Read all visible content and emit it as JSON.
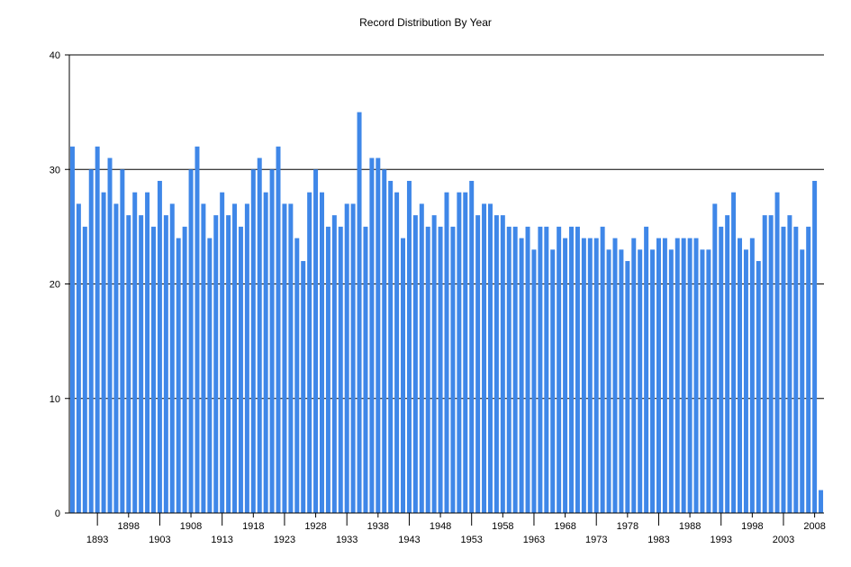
{
  "chart_data": {
    "type": "bar",
    "title": "Record Distribution By Year",
    "xlabel": "",
    "ylabel": "",
    "ylim": [
      0,
      40
    ],
    "y_ticks": [
      0,
      10,
      20,
      30,
      40
    ],
    "grid": "horizontal",
    "bar_color": "#3f87e8",
    "x_tick_labels": [
      1893,
      1898,
      1903,
      1908,
      1913,
      1918,
      1923,
      1928,
      1933,
      1938,
      1943,
      1948,
      1953,
      1958,
      1963,
      1968,
      1973,
      1978,
      1983,
      1988,
      1993,
      1998,
      2003,
      2008
    ],
    "categories": [
      1889,
      1890,
      1891,
      1892,
      1893,
      1894,
      1895,
      1896,
      1897,
      1898,
      1899,
      1900,
      1901,
      1902,
      1903,
      1904,
      1905,
      1906,
      1907,
      1908,
      1909,
      1910,
      1911,
      1912,
      1913,
      1914,
      1915,
      1916,
      1917,
      1918,
      1919,
      1920,
      1921,
      1922,
      1923,
      1924,
      1925,
      1926,
      1927,
      1928,
      1929,
      1930,
      1931,
      1932,
      1933,
      1934,
      1935,
      1936,
      1937,
      1938,
      1939,
      1940,
      1941,
      1942,
      1943,
      1944,
      1945,
      1946,
      1947,
      1948,
      1949,
      1950,
      1951,
      1952,
      1953,
      1954,
      1955,
      1956,
      1957,
      1958,
      1959,
      1960,
      1961,
      1962,
      1963,
      1964,
      1965,
      1966,
      1967,
      1968,
      1969,
      1970,
      1971,
      1972,
      1973,
      1974,
      1975,
      1976,
      1977,
      1978,
      1979,
      1980,
      1981,
      1982,
      1983,
      1984,
      1985,
      1986,
      1987,
      1988,
      1989,
      1990,
      1991,
      1992,
      1993,
      1994,
      1995,
      1996,
      1997,
      1998,
      1999,
      2000,
      2001,
      2002,
      2003,
      2004,
      2005,
      2006,
      2007,
      2008,
      2009
    ],
    "values": [
      32,
      27,
      25,
      30,
      32,
      28,
      31,
      27,
      30,
      26,
      28,
      26,
      28,
      25,
      29,
      26,
      27,
      24,
      25,
      30,
      32,
      27,
      24,
      26,
      28,
      26,
      27,
      25,
      27,
      30,
      31,
      28,
      30,
      32,
      27,
      27,
      24,
      22,
      28,
      30,
      28,
      25,
      26,
      25,
      27,
      27,
      35,
      25,
      31,
      31,
      30,
      29,
      28,
      24,
      29,
      26,
      27,
      25,
      26,
      25,
      28,
      25,
      28,
      28,
      29,
      26,
      27,
      27,
      26,
      26,
      25,
      25,
      24,
      25,
      23,
      25,
      25,
      23,
      25,
      24,
      25,
      25,
      24,
      24,
      24,
      25,
      23,
      24,
      23,
      22,
      24,
      23,
      25,
      23,
      24,
      24,
      23,
      24,
      24,
      24,
      24,
      23,
      23,
      27,
      25,
      26,
      28,
      24,
      23,
      24,
      22,
      26,
      26,
      28,
      25,
      26,
      25,
      23,
      25,
      29,
      2
    ]
  }
}
